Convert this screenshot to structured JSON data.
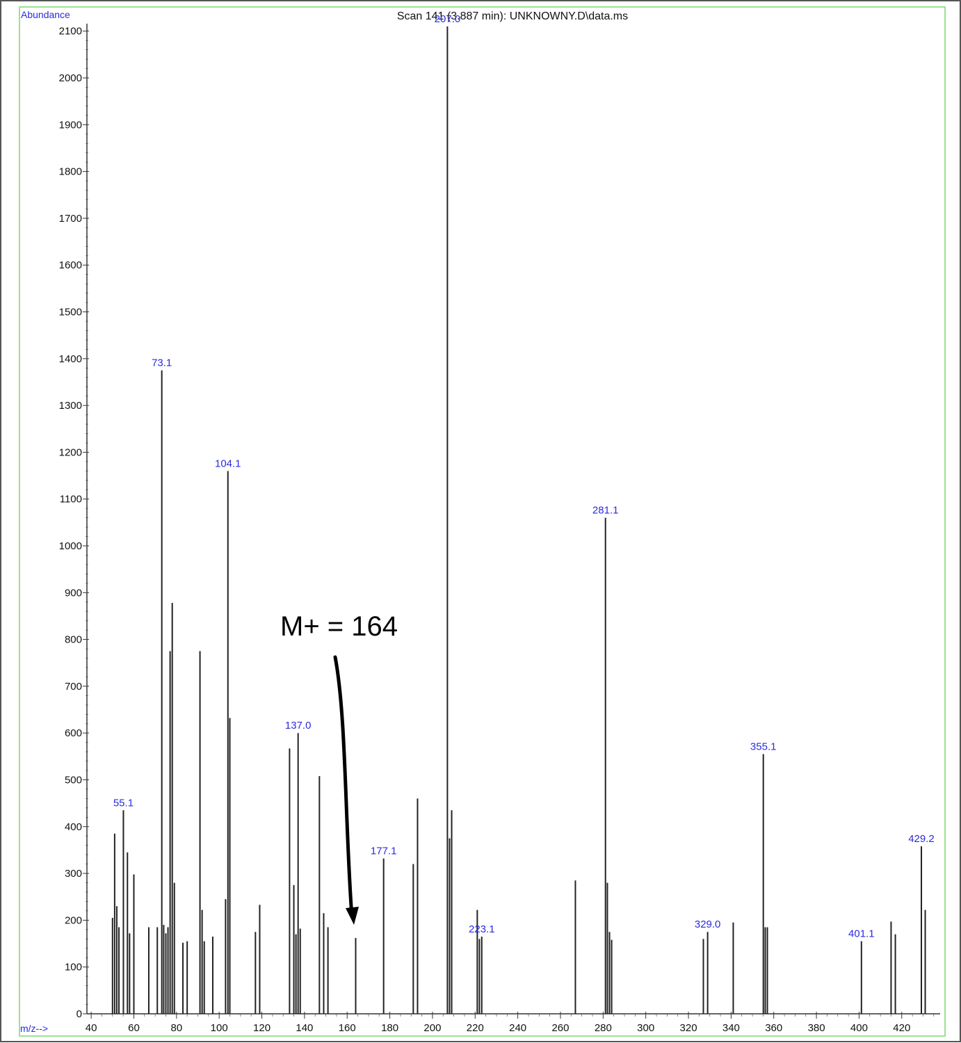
{
  "chart_data": {
    "type": "bar",
    "title": "Scan 141 (3.887 min): UNKNOWNY.D\\data.ms",
    "ylabel": "Abundance",
    "xlabel": "m/z-->",
    "xlim": [
      38,
      438
    ],
    "ylim": [
      0,
      2110
    ],
    "x_ticks": [
      40,
      60,
      80,
      100,
      120,
      140,
      160,
      180,
      200,
      220,
      240,
      260,
      280,
      300,
      320,
      340,
      360,
      380,
      400,
      420
    ],
    "y_ticks": [
      0,
      100,
      200,
      300,
      400,
      500,
      600,
      700,
      800,
      900,
      1000,
      1100,
      1200,
      1300,
      1400,
      1500,
      1600,
      1700,
      1800,
      1900,
      2000,
      2100
    ],
    "peaks": [
      {
        "mz": 50,
        "abundance": 205
      },
      {
        "mz": 51,
        "abundance": 385
      },
      {
        "mz": 52,
        "abundance": 230
      },
      {
        "mz": 53,
        "abundance": 185
      },
      {
        "mz": 55.1,
        "abundance": 435,
        "label": "55.1"
      },
      {
        "mz": 57,
        "abundance": 345
      },
      {
        "mz": 58,
        "abundance": 172
      },
      {
        "mz": 60,
        "abundance": 298
      },
      {
        "mz": 67,
        "abundance": 185
      },
      {
        "mz": 71,
        "abundance": 185
      },
      {
        "mz": 73.1,
        "abundance": 1375,
        "label": "73.1"
      },
      {
        "mz": 74,
        "abundance": 190
      },
      {
        "mz": 75,
        "abundance": 172
      },
      {
        "mz": 76,
        "abundance": 185
      },
      {
        "mz": 77,
        "abundance": 775
      },
      {
        "mz": 78,
        "abundance": 878
      },
      {
        "mz": 79,
        "abundance": 280
      },
      {
        "mz": 83,
        "abundance": 152
      },
      {
        "mz": 85,
        "abundance": 155
      },
      {
        "mz": 91,
        "abundance": 775
      },
      {
        "mz": 92,
        "abundance": 222
      },
      {
        "mz": 93,
        "abundance": 155
      },
      {
        "mz": 97,
        "abundance": 165
      },
      {
        "mz": 103,
        "abundance": 245
      },
      {
        "mz": 104.1,
        "abundance": 1160,
        "label": "104.1"
      },
      {
        "mz": 105,
        "abundance": 632
      },
      {
        "mz": 117,
        "abundance": 175
      },
      {
        "mz": 119,
        "abundance": 233
      },
      {
        "mz": 133,
        "abundance": 567
      },
      {
        "mz": 135,
        "abundance": 275
      },
      {
        "mz": 136,
        "abundance": 170
      },
      {
        "mz": 137.0,
        "abundance": 600,
        "label": "137.0"
      },
      {
        "mz": 138,
        "abundance": 182
      },
      {
        "mz": 147,
        "abundance": 508
      },
      {
        "mz": 149,
        "abundance": 215
      },
      {
        "mz": 151,
        "abundance": 185
      },
      {
        "mz": 164,
        "abundance": 162
      },
      {
        "mz": 177.1,
        "abundance": 332,
        "label": "177.1"
      },
      {
        "mz": 191,
        "abundance": 320
      },
      {
        "mz": 193,
        "abundance": 460
      },
      {
        "mz": 207.0,
        "abundance": 2110,
        "label": "207.0"
      },
      {
        "mz": 208,
        "abundance": 375
      },
      {
        "mz": 209,
        "abundance": 435
      },
      {
        "mz": 221,
        "abundance": 222
      },
      {
        "mz": 222,
        "abundance": 160
      },
      {
        "mz": 223.1,
        "abundance": 165,
        "label": "223.1"
      },
      {
        "mz": 267,
        "abundance": 285
      },
      {
        "mz": 281.1,
        "abundance": 1060,
        "label": "281.1"
      },
      {
        "mz": 282,
        "abundance": 280
      },
      {
        "mz": 283,
        "abundance": 175
      },
      {
        "mz": 284,
        "abundance": 158
      },
      {
        "mz": 327,
        "abundance": 160
      },
      {
        "mz": 329.0,
        "abundance": 175,
        "label": "329.0"
      },
      {
        "mz": 341,
        "abundance": 195
      },
      {
        "mz": 355.1,
        "abundance": 555,
        "label": "355.1"
      },
      {
        "mz": 356,
        "abundance": 185
      },
      {
        "mz": 357,
        "abundance": 185
      },
      {
        "mz": 401.1,
        "abundance": 155,
        "label": "401.1"
      },
      {
        "mz": 415,
        "abundance": 197
      },
      {
        "mz": 417,
        "abundance": 170
      },
      {
        "mz": 429.2,
        "abundance": 358,
        "label": "429.2"
      },
      {
        "mz": 431,
        "abundance": 222
      }
    ],
    "annotations": [
      {
        "text": "M+ = 164",
        "points_to_mz": 164
      }
    ],
    "colors": {
      "label": "#2a2ae0",
      "bar": "#222222",
      "frame": "#7bd86a",
      "arrow": "#000000"
    },
    "grid": false
  }
}
